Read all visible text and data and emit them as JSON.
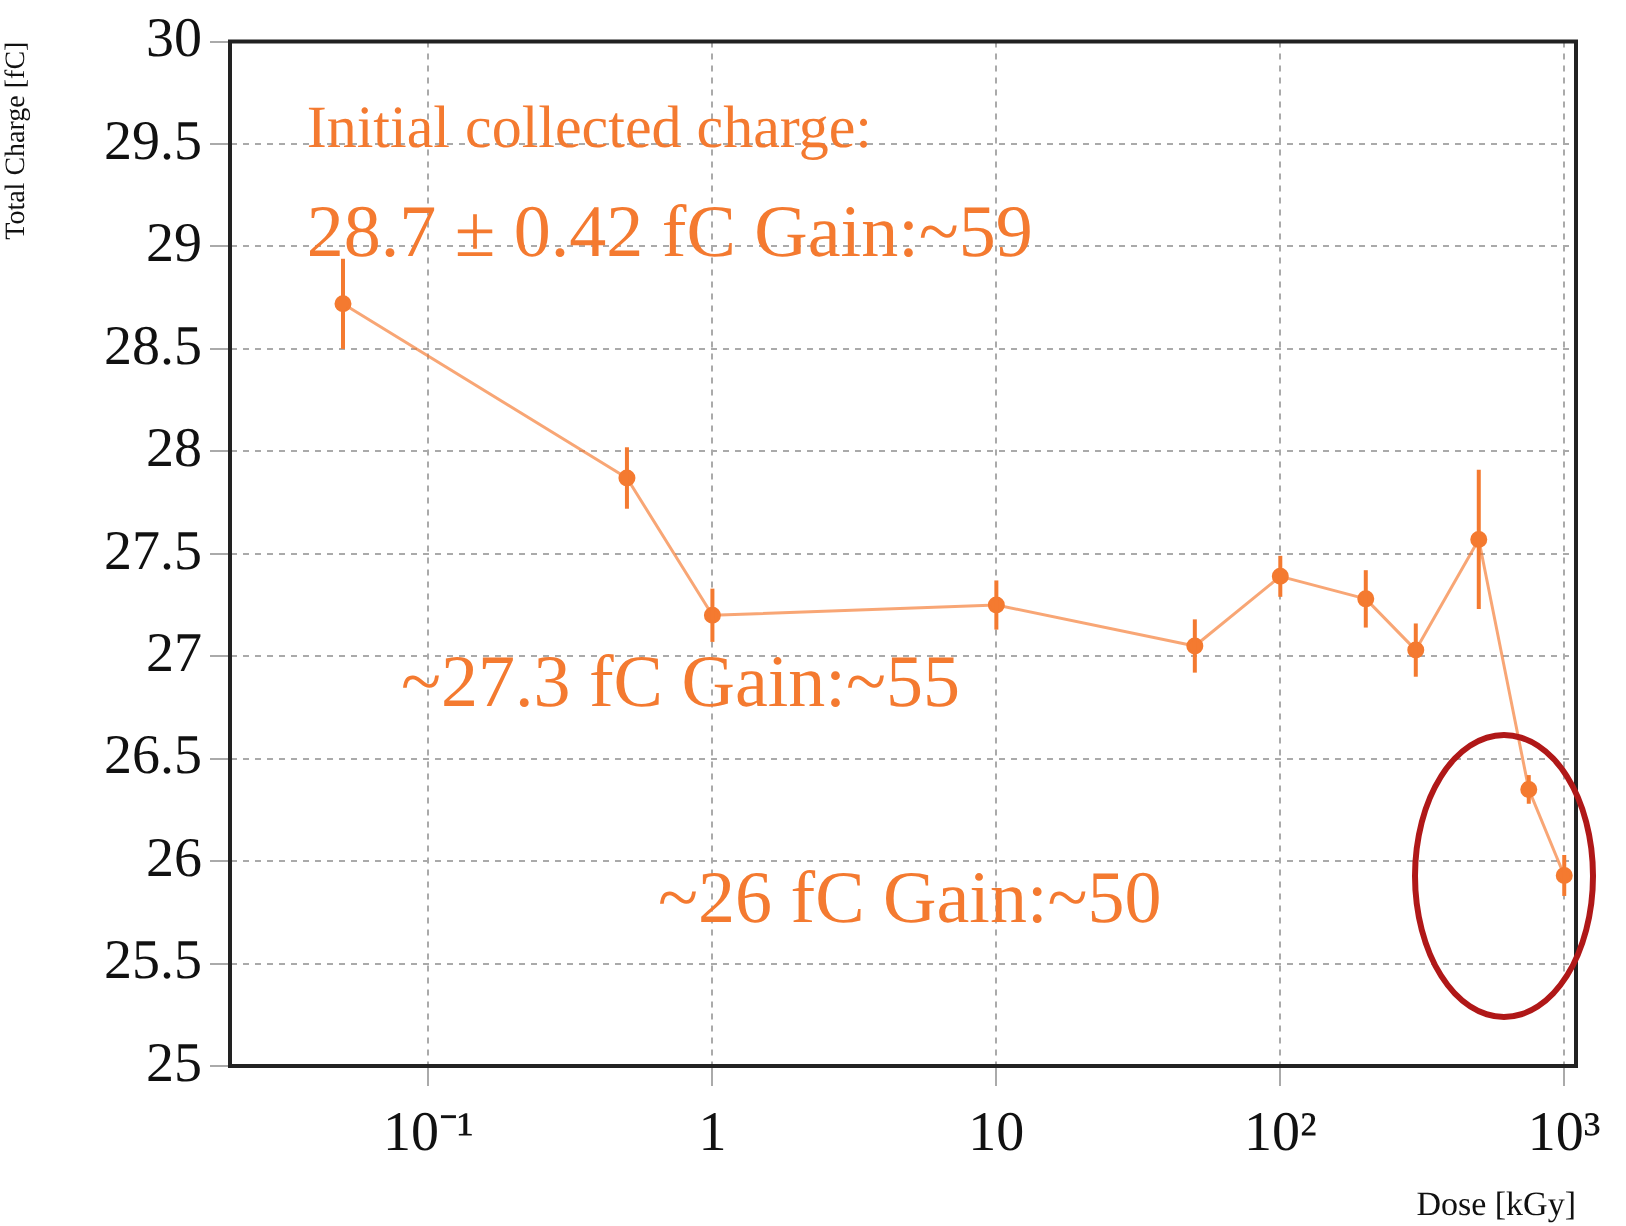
{
  "chart_data": {
    "type": "line",
    "xlabel": "Dose [kGy]",
    "ylabel": "Total Charge [fC]",
    "x": [
      0.05,
      0.5,
      1,
      10,
      50,
      100,
      200,
      300,
      500,
      750,
      1000
    ],
    "series": [
      {
        "color": "#f47a30",
        "values": [
          28.72,
          27.87,
          27.2,
          27.25,
          27.05,
          27.39,
          27.28,
          27.03,
          27.57,
          26.35,
          25.93
        ],
        "errors": [
          0.22,
          0.15,
          0.13,
          0.12,
          0.13,
          0.1,
          0.14,
          0.13,
          0.34,
          0.07,
          0.1
        ]
      }
    ],
    "log": "x",
    "xlim": [
      0.02,
      1100
    ],
    "xticks": [
      {
        "value": 0.1,
        "label": "10⁻¹"
      },
      1,
      10,
      {
        "value": 100,
        "label": "10²"
      },
      {
        "value": 1000,
        "label": "10³"
      }
    ],
    "ylim": [
      25,
      30
    ],
    "yticks": [
      25,
      25.5,
      26,
      26.5,
      27,
      27.5,
      28,
      28.5,
      29,
      29.5,
      30
    ],
    "grid": true,
    "marker": "circle",
    "line_style": "solid",
    "legend": false,
    "annotations": [
      "Initial collected charge:",
      "28.7 ± 0.42 fC Gain:~59",
      "~27.3 fC Gain:~55",
      "~26 fC Gain:~50"
    ]
  }
}
